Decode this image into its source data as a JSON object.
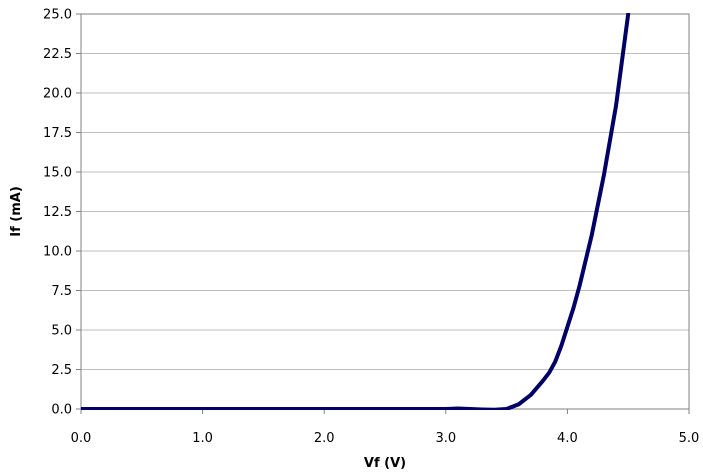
{
  "chart_data": {
    "type": "line",
    "title": "",
    "xlabel": "Vf (V)",
    "ylabel": "If (mA)",
    "xlim": [
      0,
      5
    ],
    "ylim": [
      0,
      25
    ],
    "x_ticks": [
      "0.0",
      "1.0",
      "2.0",
      "3.0",
      "4.0",
      "5.0"
    ],
    "y_ticks": [
      "0.0",
      "2.5",
      "5.0",
      "7.5",
      "10.0",
      "12.5",
      "15.0",
      "17.5",
      "20.0",
      "22.5",
      "25.0"
    ],
    "grid": "horizontal",
    "legend": "none",
    "series": [
      {
        "color": "#000066",
        "x": [
          0.0,
          0.5,
          1.0,
          1.5,
          2.0,
          2.5,
          3.0,
          3.1,
          3.2,
          3.3,
          3.4,
          3.5,
          3.6,
          3.7,
          3.8,
          3.85,
          3.9,
          3.95,
          4.0,
          4.05,
          4.1,
          4.2,
          4.3,
          4.4,
          4.5
        ],
        "y": [
          0.0,
          0.0,
          0.0,
          0.0,
          0.0,
          0.0,
          0.0,
          0.03,
          0.0,
          -0.03,
          -0.05,
          0.0,
          0.3,
          0.9,
          1.8,
          2.3,
          3.0,
          4.0,
          5.2,
          6.4,
          7.8,
          11.0,
          14.8,
          19.2,
          25.0
        ]
      }
    ]
  }
}
